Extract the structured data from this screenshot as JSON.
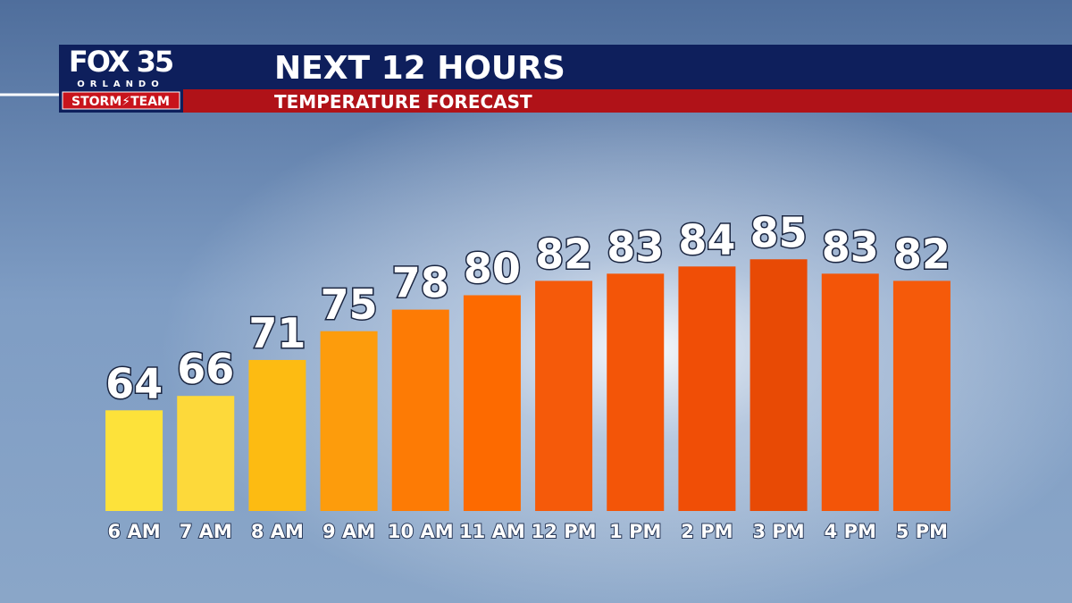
{
  "branding": {
    "station": "FOX 35",
    "city": "ORLANDO",
    "team": "STORM⚡TEAM"
  },
  "chart_data": {
    "type": "bar",
    "title": "NEXT 12 HOURS",
    "subtitle": "TEMPERATURE FORECAST",
    "categories": [
      "6 AM",
      "7 AM",
      "8 AM",
      "9 AM",
      "10 AM",
      "11 AM",
      "12 PM",
      "1 PM",
      "2 PM",
      "3 PM",
      "4 PM",
      "5 PM"
    ],
    "values": [
      64,
      66,
      71,
      75,
      78,
      80,
      82,
      83,
      84,
      85,
      83,
      82
    ],
    "colors": [
      "#fde23a",
      "#fdd93a",
      "#fdbb12",
      "#fd9c0c",
      "#fd7b05",
      "#fd6a00",
      "#f55a0a",
      "#f35508",
      "#f04e06",
      "#e84a05",
      "#f35508",
      "#f55a0a"
    ],
    "ylim": [
      50,
      90
    ]
  }
}
